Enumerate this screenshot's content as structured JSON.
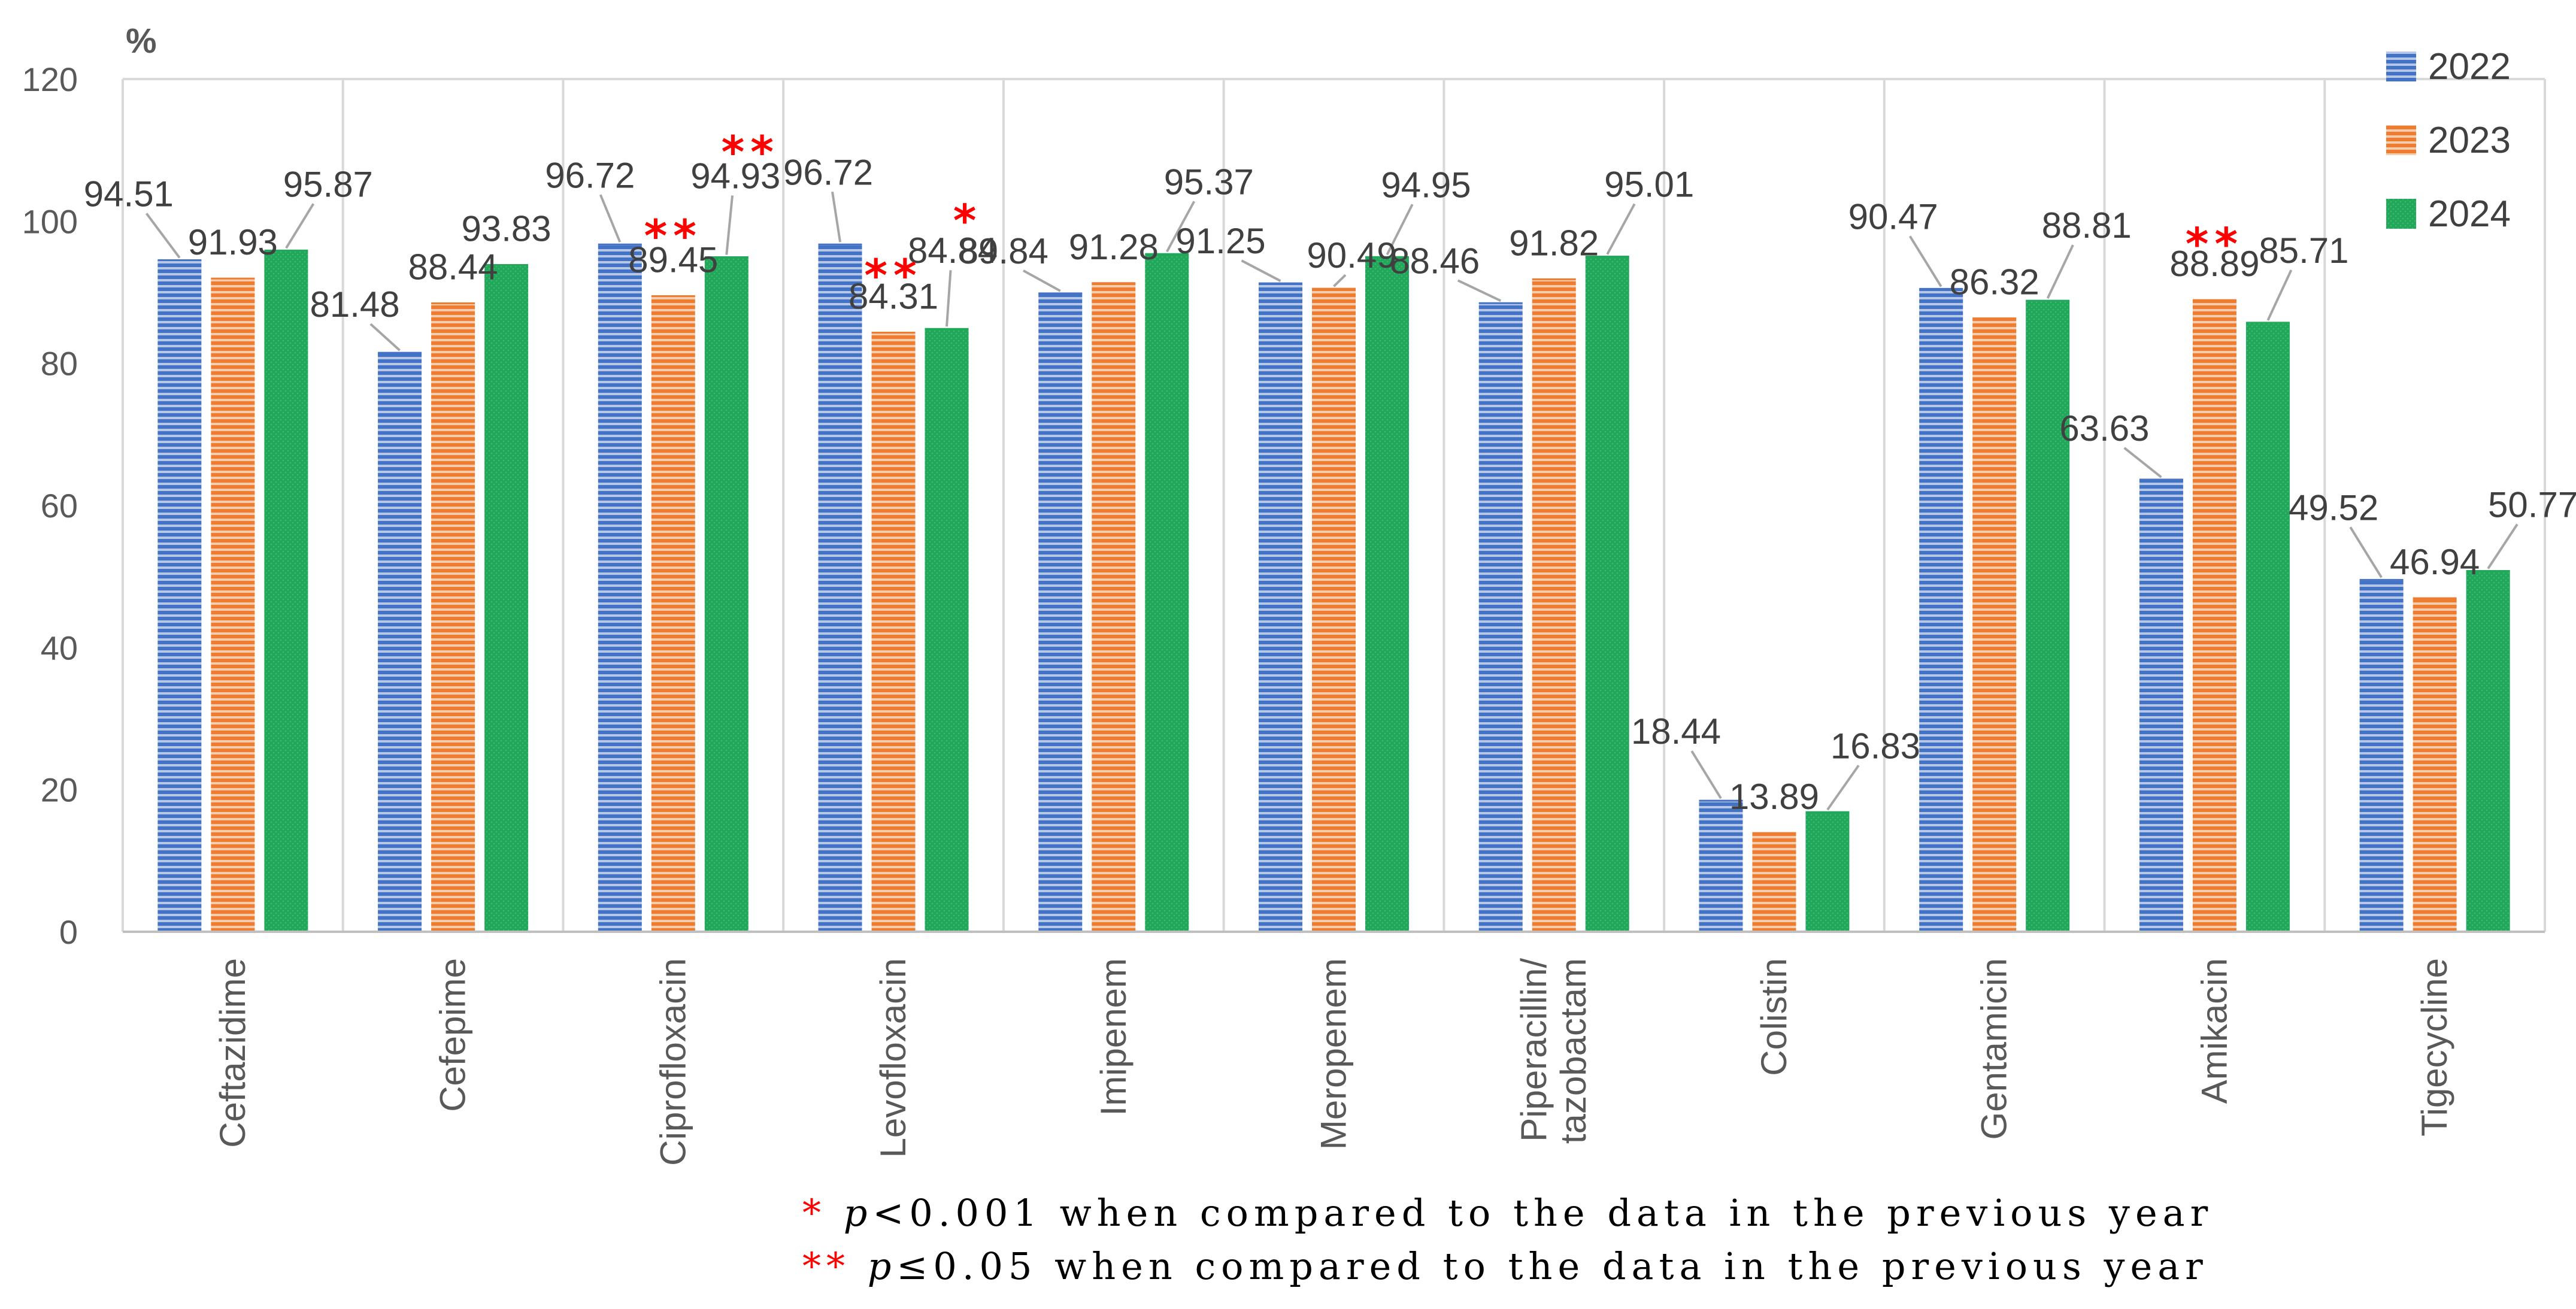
{
  "chart_data": {
    "type": "bar",
    "title": "",
    "xlabel": "",
    "ylabel": "%",
    "ylim": [
      0,
      120
    ],
    "yticks": [
      "0",
      "20",
      "40",
      "60",
      "80",
      "100",
      "120"
    ],
    "categories": [
      "Ceftazidime",
      "Cefepime",
      "Ciprofloxacin",
      "Levofloxacin",
      "Imipenem",
      "Meropenem",
      "Piperacillin/ tazobactam",
      "Colistin",
      "Gentamicin",
      "Amikacin",
      "Tigecycline"
    ],
    "category_lines": [
      [
        "Ceftazidime"
      ],
      [
        "Cefepime"
      ],
      [
        "Ciprofloxacin"
      ],
      [
        "Levofloxacin"
      ],
      [
        "Imipenem"
      ],
      [
        "Meropenem"
      ],
      [
        "Piperacillin/",
        "tazobactam"
      ],
      [
        "Colistin"
      ],
      [
        "Gentamicin"
      ],
      [
        "Amikacin"
      ],
      [
        "Tigecycline"
      ]
    ],
    "series": [
      {
        "name": "2022",
        "color": "#4472c4",
        "values": [
          94.51,
          81.48,
          96.72,
          96.72,
          89.84,
          91.25,
          88.46,
          18.44,
          90.47,
          63.63,
          49.52
        ],
        "labels": [
          "94.51",
          "81.48",
          "96.72",
          "96.72",
          "89.84",
          "91.25",
          "88.46",
          "18.44",
          "90.47",
          "63.63",
          "49.52"
        ],
        "significance": [
          "",
          "",
          "",
          "",
          "",
          "",
          "",
          "",
          "",
          "",
          ""
        ]
      },
      {
        "name": "2023",
        "color": "#ed7d31",
        "values": [
          91.93,
          88.44,
          89.45,
          84.31,
          91.28,
          90.49,
          91.82,
          13.89,
          86.32,
          88.89,
          46.94
        ],
        "labels": [
          "91.93",
          "88.44",
          "89.45",
          "84.31",
          "91.28",
          "90.49",
          "91.82",
          "13.89",
          "86.32",
          "88.89",
          "46.94"
        ],
        "significance": [
          "",
          "",
          "**",
          "**",
          "",
          "",
          "",
          "",
          "",
          "**",
          ""
        ]
      },
      {
        "name": "2024",
        "color": "#22a85a",
        "values": [
          95.87,
          93.83,
          94.93,
          84.84,
          95.37,
          94.95,
          95.01,
          16.83,
          88.81,
          85.71,
          50.77
        ],
        "labels": [
          "95.87",
          "93.83",
          "94.93",
          "84.84",
          "95.37",
          "94.95",
          "95.01",
          "16.83",
          "88.81",
          "85.71",
          "50.77"
        ],
        "significance": [
          "",
          "",
          "**",
          "*",
          "",
          "",
          "",
          "",
          "",
          "",
          ""
        ]
      }
    ],
    "legend_position": "top-right",
    "footnotes": [
      {
        "marker": "*",
        "p": "p",
        "text": "<0.001 when compared to the data in the previous year"
      },
      {
        "marker": "**",
        "p": "p",
        "text": "≤0.05 when compared to the data in the previous year"
      }
    ]
  }
}
